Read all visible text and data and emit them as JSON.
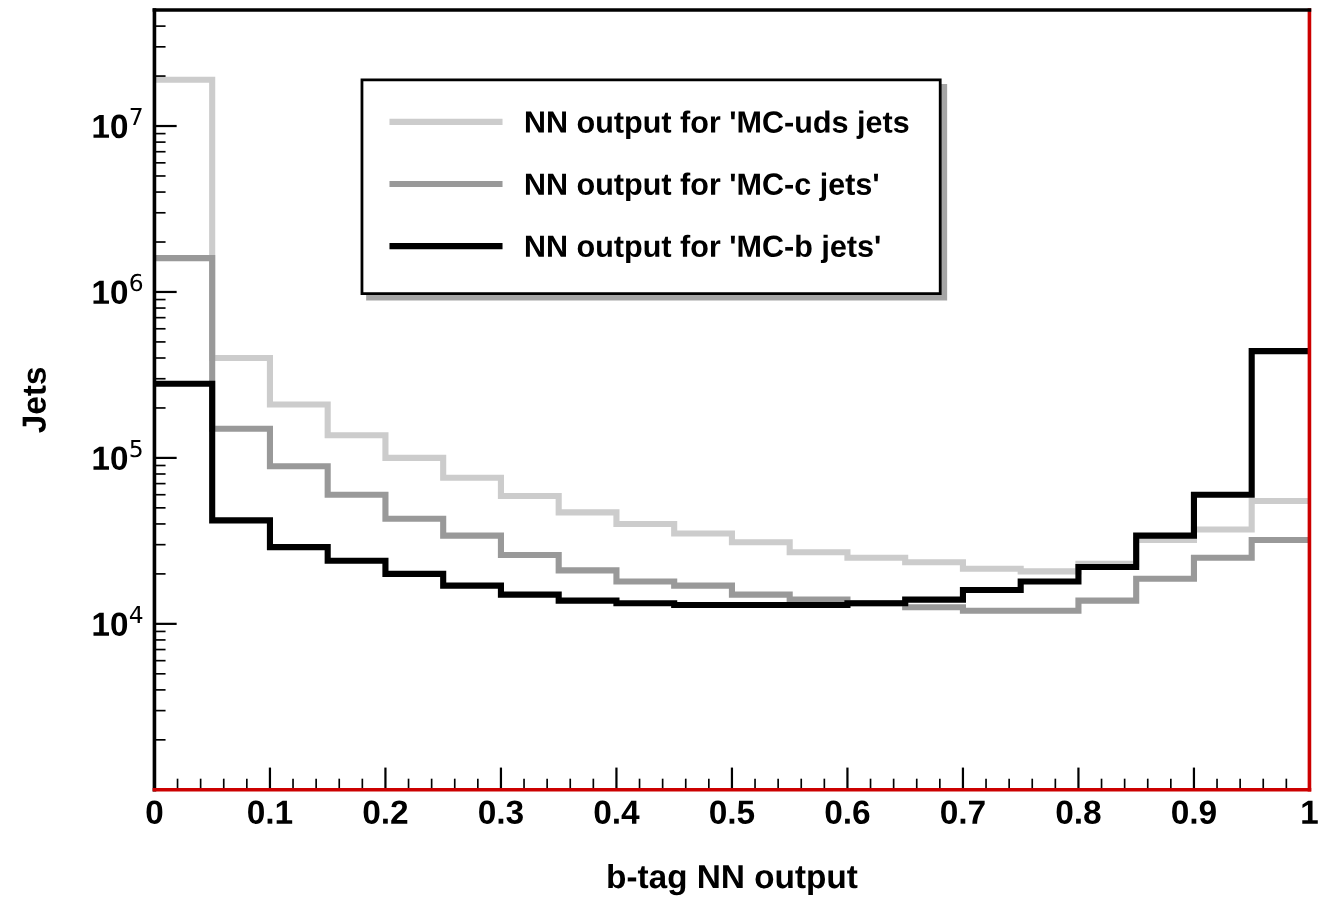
{
  "chart_data": {
    "type": "histogram",
    "xlabel": "b-tag NN output",
    "ylabel": "Jets",
    "bins": [
      0,
      0.05,
      0.1,
      0.15,
      0.2,
      0.25,
      0.3,
      0.35,
      0.4,
      0.45,
      0.5,
      0.55,
      0.6,
      0.65,
      0.7,
      0.75,
      0.8,
      0.85,
      0.9,
      0.95,
      1
    ],
    "series": [
      {
        "name": "NN output for 'MC-uds jets",
        "color": "#cccccc",
        "values": [
          19000000.0,
          400000.0,
          210000.0,
          137000.0,
          100000.0,
          76000.0,
          59000.0,
          47000.0,
          40000.0,
          35000.0,
          31000.0,
          27000.0,
          25000.0,
          23500.0,
          21500.0,
          20700.0,
          23000.0,
          32000.0,
          37000.0,
          55000.0
        ]
      },
      {
        "name": "NN output for 'MC-c jets'",
        "color": "#999999",
        "values": [
          1600000.0,
          150000.0,
          89000.0,
          60000.0,
          43000.0,
          34000.0,
          26000.0,
          21000.0,
          18000.0,
          17000.0,
          15000.0,
          14000.0,
          13300.0,
          12600.0,
          12000.0,
          12000.0,
          13800.0,
          18700.0,
          25000.0,
          32000.0
        ]
      },
      {
        "name": "NN output for 'MC-b jets'",
        "color": "#000000",
        "values": [
          280000.0,
          42000.0,
          29000.0,
          24000.0,
          20000.0,
          17000.0,
          15000.0,
          13800.0,
          13300.0,
          13000.0,
          13000.0,
          13000.0,
          13300.0,
          14000.0,
          16000.0,
          18000.0,
          22000.0,
          34000.0,
          60000.0,
          440000.0
        ]
      }
    ],
    "log": "y",
    "xlim": [
      0,
      1
    ],
    "ylim": [
      1000,
      50000000.0
    ],
    "xticks": [
      0,
      0.1,
      0.2,
      0.3,
      0.4,
      0.5,
      0.6,
      0.7,
      0.8,
      0.9,
      1
    ],
    "yticks": [
      {
        "value": 10000,
        "label": "10$^{4}$"
      },
      {
        "value": 100000,
        "label": "10$^{5}$"
      },
      {
        "value": 1000000,
        "label": "10$^{6}$"
      },
      {
        "value": 10000000,
        "label": "10$^{7}$"
      }
    ],
    "grid": false,
    "legend": "top"
  }
}
